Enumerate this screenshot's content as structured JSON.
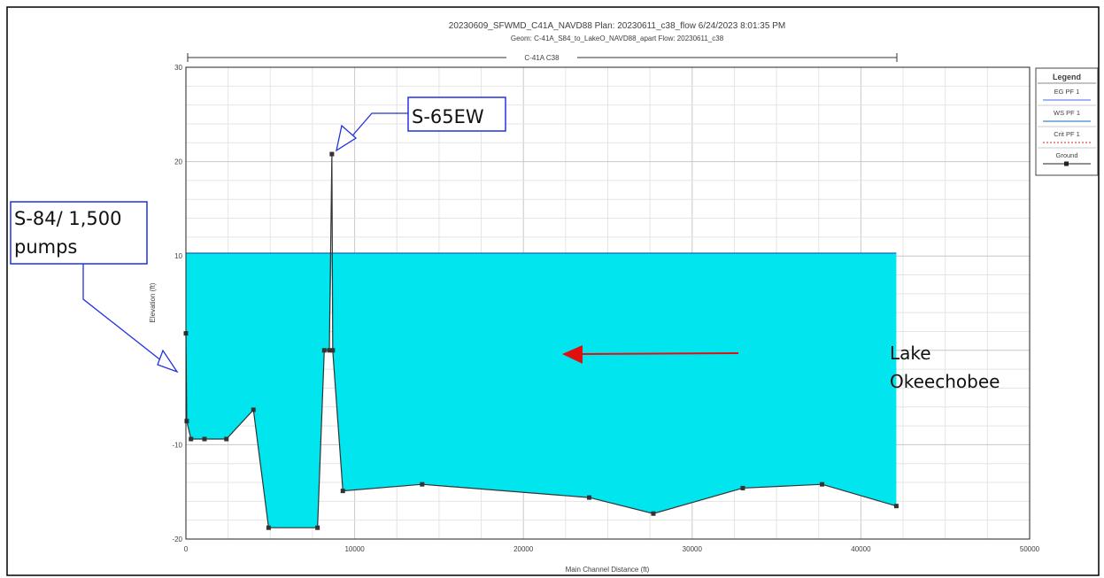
{
  "header": {
    "line1": "20230609_SFWMD_C41A_NAVD88      Plan: 20230611_c38_flow     6/24/2023  8:01:35 PM",
    "line2": "Geom: C-41A_S84_to_LakeO_NAVD88_apart    Flow: 20230611_c38"
  },
  "reach_label": "C-41A C38",
  "legend": {
    "title": "Legend",
    "items": [
      {
        "label": "EG  PF 1",
        "color": "#4a6ae0",
        "style": "solid"
      },
      {
        "label": "WS  PF 1",
        "color": "#1565c0",
        "style": "solid"
      },
      {
        "label": "Crit  PF 1",
        "color": "#d02020",
        "style": "dashed"
      },
      {
        "label": "Ground",
        "color": "#222222",
        "style": "marker"
      }
    ]
  },
  "annotations": {
    "s84": [
      "S-84/ 1,500",
      "pumps"
    ],
    "s65": "S-65EW",
    "lake": [
      "Lake",
      "Okeechobee"
    ]
  },
  "colors": {
    "water": "#00e5ee",
    "ground": "#333333",
    "callout_border": "#2230e0",
    "arrow": "#e01010"
  },
  "chart_data": {
    "type": "area",
    "xlabel": "Main Channel Distance (ft)",
    "ylabel": "Elevation (ft)",
    "xlim": [
      0,
      50000
    ],
    "ylim": [
      -20,
      30
    ],
    "xticks": [
      0,
      10000,
      20000,
      30000,
      40000,
      50000
    ],
    "yticks": [
      -20,
      -10,
      10,
      20,
      30
    ],
    "water_surface": 10.3,
    "grid": true,
    "legend_position": "right",
    "ground": {
      "x": [
        0,
        50,
        300,
        1100,
        2400,
        4000,
        4900,
        7800,
        8200,
        8500,
        8650,
        8700,
        9300,
        14000,
        23900,
        27700,
        33000,
        37700,
        42100
      ],
      "y": [
        1.8,
        -7.5,
        -9.4,
        -9.4,
        -9.4,
        -6.3,
        -18.8,
        -18.8,
        0,
        0,
        20.8,
        0,
        -14.9,
        -14.2,
        -15.6,
        -17.3,
        -14.6,
        -14.2,
        -16.5
      ]
    }
  }
}
